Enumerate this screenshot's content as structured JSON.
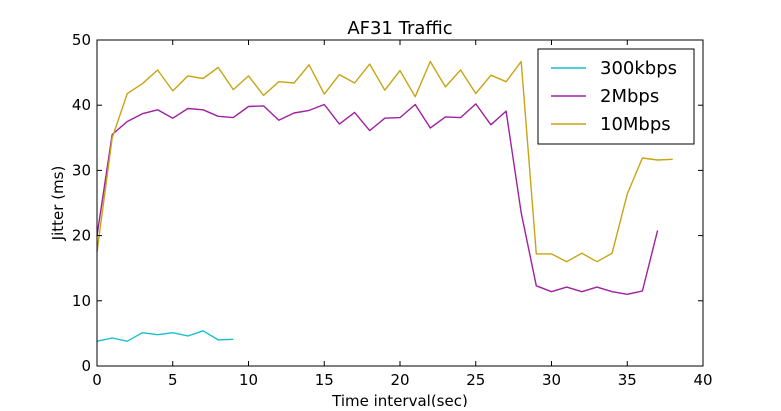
{
  "chart_data": {
    "type": "line",
    "title": "AF31 Traffic",
    "xlabel": "Time interval(sec)",
    "ylabel": "Jitter (ms)",
    "xlim": [
      0,
      40
    ],
    "ylim": [
      0,
      50
    ],
    "x_ticks": [
      0,
      5,
      10,
      15,
      20,
      25,
      30,
      35,
      40
    ],
    "y_ticks": [
      0,
      10,
      20,
      30,
      40,
      50
    ],
    "grid": false,
    "legend_position": "top-right",
    "series": [
      {
        "name": "300kbps",
        "color": "#17becf",
        "x": [
          0,
          1,
          2,
          3,
          4,
          5,
          6,
          7,
          8,
          9
        ],
        "y": [
          3.8,
          4.3,
          3.8,
          5.1,
          4.8,
          5.1,
          4.6,
          5.4,
          4.0,
          4.1
        ]
      },
      {
        "name": "2Mbps",
        "color": "#a020a0",
        "x": [
          0,
          1,
          2,
          3,
          4,
          5,
          6,
          7,
          8,
          9,
          10,
          11,
          12,
          13,
          14,
          15,
          16,
          17,
          18,
          19,
          20,
          21,
          22,
          23,
          24,
          25,
          26,
          27,
          28,
          29,
          30,
          31,
          32,
          33,
          34,
          35,
          36,
          37
        ],
        "y": [
          20.0,
          35.5,
          37.5,
          38.7,
          39.3,
          38.0,
          39.5,
          39.3,
          38.3,
          38.1,
          39.8,
          39.9,
          37.7,
          38.8,
          39.2,
          40.1,
          37.1,
          38.9,
          36.1,
          38.0,
          38.1,
          40.1,
          36.5,
          38.2,
          38.1,
          40.2,
          37.0,
          39.1,
          23.5,
          12.3,
          11.4,
          12.1,
          11.4,
          12.1,
          11.4,
          11.0,
          11.5,
          20.8
        ]
      },
      {
        "name": "10Mbps",
        "color": "#c8a415",
        "x": [
          0,
          1,
          2,
          3,
          4,
          5,
          6,
          7,
          8,
          9,
          10,
          11,
          12,
          13,
          14,
          15,
          16,
          17,
          18,
          19,
          20,
          21,
          22,
          23,
          24,
          25,
          26,
          27,
          28,
          29,
          30,
          31,
          32,
          33,
          34,
          35,
          36,
          37,
          38
        ],
        "y": [
          17.5,
          35.0,
          41.8,
          43.3,
          45.4,
          42.2,
          44.5,
          44.1,
          45.8,
          42.4,
          44.5,
          41.5,
          43.6,
          43.4,
          46.2,
          41.7,
          44.7,
          43.4,
          46.3,
          42.3,
          45.3,
          41.3,
          46.7,
          42.8,
          45.4,
          41.8,
          44.6,
          43.6,
          46.7,
          17.2,
          17.2,
          16.0,
          17.3,
          16.0,
          17.3,
          26.4,
          31.9,
          31.6,
          31.7
        ]
      }
    ]
  }
}
